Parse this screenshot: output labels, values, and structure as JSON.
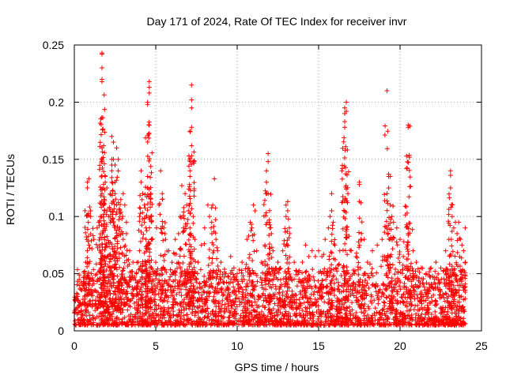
{
  "chart_data": {
    "type": "scatter",
    "title": "Day 171 of 2024, Rate Of TEC Index for receiver invr",
    "xlabel": "GPS time / hours",
    "ylabel": "ROTI / TECUs",
    "xlim": [
      0,
      25
    ],
    "ylim": [
      0,
      0.25
    ],
    "xticks": [
      0,
      5,
      10,
      15,
      20,
      25
    ],
    "yticks": [
      0,
      0.05,
      0.1,
      0.15,
      0.2,
      0.25
    ],
    "xtick_labels": [
      "0",
      "5",
      "10",
      "15",
      "20",
      "25"
    ],
    "ytick_labels": [
      "0",
      "0.05",
      "0.1",
      "0.15",
      "0.2",
      "0.25"
    ],
    "grid": true,
    "marker": "+",
    "color": "#ff0000",
    "series": [
      {
        "name": "ROTI",
        "points": [
          [
            0.2,
            0.03
          ],
          [
            0.3,
            0.045
          ],
          [
            0.5,
            0.04
          ],
          [
            0.7,
            0.06
          ],
          [
            0.8,
            0.07
          ],
          [
            0.9,
            0.075
          ],
          [
            0.8,
            0.125
          ],
          [
            0.8,
            0.13
          ],
          [
            0.9,
            0.133
          ],
          [
            1.0,
            0.1
          ],
          [
            1.0,
            0.105
          ],
          [
            1.2,
            0.08
          ],
          [
            1.4,
            0.09
          ],
          [
            1.5,
            0.095
          ],
          [
            1.6,
            0.1
          ],
          [
            1.7,
            0.243
          ],
          [
            1.7,
            0.242
          ],
          [
            1.7,
            0.23
          ],
          [
            1.7,
            0.22
          ],
          [
            1.7,
            0.218
          ],
          [
            1.7,
            0.16
          ],
          [
            1.7,
            0.15
          ],
          [
            1.7,
            0.12
          ],
          [
            1.8,
            0.11
          ],
          [
            1.8,
            0.162
          ],
          [
            1.9,
            0.135
          ],
          [
            1.9,
            0.13
          ],
          [
            2.0,
            0.125
          ],
          [
            2.0,
            0.105
          ],
          [
            2.1,
            0.1
          ],
          [
            2.2,
            0.12
          ],
          [
            2.3,
            0.13
          ],
          [
            2.3,
            0.14
          ],
          [
            2.3,
            0.145
          ],
          [
            2.3,
            0.15
          ],
          [
            2.3,
            0.17
          ],
          [
            2.4,
            0.165
          ],
          [
            2.4,
            0.15
          ],
          [
            2.5,
            0.145
          ],
          [
            2.5,
            0.13
          ],
          [
            2.5,
            0.12
          ],
          [
            2.6,
            0.11
          ],
          [
            2.6,
            0.16
          ],
          [
            2.7,
            0.15
          ],
          [
            2.7,
            0.14
          ],
          [
            2.8,
            0.1
          ],
          [
            2.8,
            0.09
          ],
          [
            3.0,
            0.08
          ],
          [
            3.0,
            0.12
          ],
          [
            3.1,
            0.11
          ],
          [
            3.2,
            0.095
          ],
          [
            3.2,
            0.085
          ],
          [
            3.4,
            0.07
          ],
          [
            3.6,
            0.06
          ],
          [
            3.8,
            0.05
          ],
          [
            4.0,
            0.07
          ],
          [
            4.0,
            0.1
          ],
          [
            4.1,
            0.14
          ],
          [
            4.1,
            0.13
          ],
          [
            4.2,
            0.12
          ],
          [
            4.3,
            0.095
          ],
          [
            4.3,
            0.11
          ],
          [
            4.4,
            0.09
          ],
          [
            4.4,
            0.08
          ],
          [
            4.5,
            0.125
          ],
          [
            4.5,
            0.135
          ],
          [
            4.5,
            0.2
          ],
          [
            4.5,
            0.198
          ],
          [
            4.6,
            0.218
          ],
          [
            4.6,
            0.213
          ],
          [
            4.6,
            0.208
          ],
          [
            4.6,
            0.18
          ],
          [
            4.7,
            0.12
          ],
          [
            4.7,
            0.1
          ],
          [
            4.8,
            0.08
          ],
          [
            5.0,
            0.06
          ],
          [
            5.2,
            0.11
          ],
          [
            5.3,
            0.14
          ],
          [
            5.4,
            0.115
          ],
          [
            5.4,
            0.12
          ],
          [
            5.5,
            0.09
          ],
          [
            5.6,
            0.08
          ],
          [
            5.8,
            0.07
          ],
          [
            6.0,
            0.06
          ],
          [
            6.2,
            0.08
          ],
          [
            6.4,
            0.085
          ],
          [
            6.5,
            0.1
          ],
          [
            6.6,
            0.127
          ],
          [
            6.7,
            0.09
          ],
          [
            6.8,
            0.12
          ],
          [
            6.9,
            0.11
          ],
          [
            7.0,
            0.105
          ],
          [
            7.1,
            0.09
          ],
          [
            7.1,
            0.135
          ],
          [
            7.1,
            0.14
          ],
          [
            7.2,
            0.215
          ],
          [
            7.2,
            0.202
          ],
          [
            7.2,
            0.195
          ],
          [
            7.2,
            0.178
          ],
          [
            7.2,
            0.162
          ],
          [
            7.3,
            0.1
          ],
          [
            7.4,
            0.08
          ],
          [
            7.6,
            0.06
          ],
          [
            7.8,
            0.075
          ],
          [
            8.0,
            0.09
          ],
          [
            8.2,
            0.11
          ],
          [
            8.3,
            0.1
          ],
          [
            8.4,
            0.09
          ],
          [
            8.5,
            0.11
          ],
          [
            8.6,
            0.133
          ],
          [
            8.7,
            0.08
          ],
          [
            8.8,
            0.07
          ],
          [
            9.0,
            0.06
          ],
          [
            9.3,
            0.05
          ],
          [
            9.6,
            0.065
          ],
          [
            9.8,
            0.055
          ],
          [
            10.0,
            0.05
          ],
          [
            10.3,
            0.06
          ],
          [
            10.6,
            0.08
          ],
          [
            10.8,
            0.095
          ],
          [
            10.9,
            0.09
          ],
          [
            11.0,
            0.11
          ],
          [
            11.1,
            0.105
          ],
          [
            11.2,
            0.07
          ],
          [
            11.5,
            0.06
          ],
          [
            11.7,
            0.075
          ],
          [
            11.8,
            0.13
          ],
          [
            11.8,
            0.14
          ],
          [
            11.9,
            0.155
          ],
          [
            11.9,
            0.148
          ],
          [
            11.9,
            0.12
          ],
          [
            12.0,
            0.09
          ],
          [
            12.1,
            0.085
          ],
          [
            12.2,
            0.07
          ],
          [
            12.5,
            0.06
          ],
          [
            12.8,
            0.07
          ],
          [
            13.0,
            0.1
          ],
          [
            13.0,
            0.11
          ],
          [
            13.1,
            0.113
          ],
          [
            13.1,
            0.105
          ],
          [
            13.2,
            0.09
          ],
          [
            13.5,
            0.06
          ],
          [
            13.8,
            0.045
          ],
          [
            14.0,
            0.06
          ],
          [
            14.2,
            0.075
          ],
          [
            14.4,
            0.065
          ],
          [
            14.6,
            0.07
          ],
          [
            14.8,
            0.065
          ],
          [
            15.0,
            0.07
          ],
          [
            15.2,
            0.065
          ],
          [
            15.4,
            0.08
          ],
          [
            15.6,
            0.09
          ],
          [
            15.7,
            0.1
          ],
          [
            15.8,
            0.105
          ],
          [
            15.8,
            0.12
          ],
          [
            15.9,
            0.095
          ],
          [
            16.0,
            0.075
          ],
          [
            16.3,
            0.07
          ],
          [
            16.6,
            0.195
          ],
          [
            16.6,
            0.19
          ],
          [
            16.6,
            0.183
          ],
          [
            16.6,
            0.178
          ],
          [
            16.7,
            0.2
          ],
          [
            16.7,
            0.192
          ],
          [
            16.8,
            0.12
          ],
          [
            17.0,
            0.07
          ],
          [
            17.3,
            0.065
          ],
          [
            17.5,
            0.13
          ],
          [
            17.5,
            0.128
          ],
          [
            17.6,
            0.112
          ],
          [
            17.8,
            0.08
          ],
          [
            18.0,
            0.06
          ],
          [
            18.3,
            0.07
          ],
          [
            18.6,
            0.075
          ],
          [
            18.9,
            0.08
          ],
          [
            19.2,
            0.12
          ],
          [
            19.2,
            0.21
          ],
          [
            19.3,
            0.135
          ],
          [
            19.3,
            0.137
          ],
          [
            19.4,
            0.135
          ],
          [
            19.4,
            0.11
          ],
          [
            19.5,
            0.1
          ],
          [
            19.6,
            0.095
          ],
          [
            19.8,
            0.09
          ],
          [
            20.0,
            0.08
          ],
          [
            20.2,
            0.065
          ],
          [
            20.4,
            0.142
          ],
          [
            20.5,
            0.18
          ],
          [
            20.5,
            0.178
          ],
          [
            20.6,
            0.179
          ],
          [
            20.6,
            0.126
          ],
          [
            20.6,
            0.094
          ],
          [
            20.8,
            0.07
          ],
          [
            21.0,
            0.06
          ],
          [
            21.3,
            0.055
          ],
          [
            21.6,
            0.05
          ],
          [
            21.9,
            0.055
          ],
          [
            22.2,
            0.06
          ],
          [
            22.5,
            0.055
          ],
          [
            22.8,
            0.07
          ],
          [
            23.0,
            0.08
          ],
          [
            23.1,
            0.14
          ],
          [
            23.1,
            0.136
          ],
          [
            23.1,
            0.125
          ],
          [
            23.2,
            0.1
          ],
          [
            23.3,
            0.09
          ],
          [
            23.4,
            0.095
          ],
          [
            23.5,
            0.085
          ],
          [
            23.6,
            0.095
          ],
          [
            23.7,
            0.08
          ],
          [
            23.8,
            0.075
          ],
          [
            23.9,
            0.07
          ],
          [
            24.0,
            0.09
          ],
          [
            24.0,
            0.06
          ]
        ]
      }
    ],
    "baseline": {
      "description": "dense band of points between 0.005 and about 0.05 TECU across all hours 0 to 24",
      "x_range": [
        0,
        24
      ],
      "y_range": [
        0.005,
        0.055
      ]
    }
  }
}
